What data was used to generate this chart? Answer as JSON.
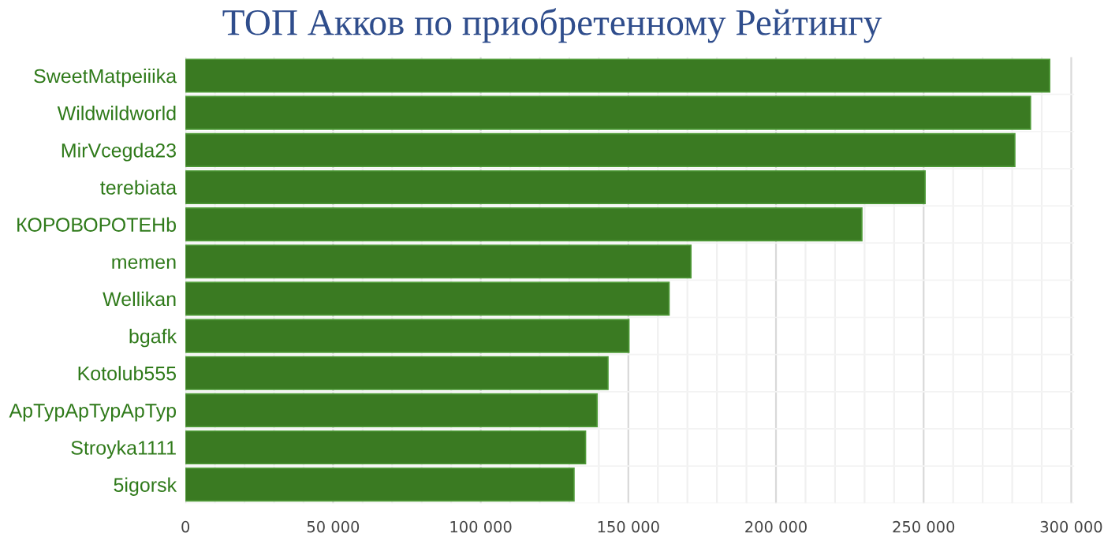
{
  "chart_data": {
    "type": "bar",
    "orientation": "horizontal",
    "title": "ТОП Акков по приобретенному Рейтингу",
    "categories": [
      "SweetMatpeiiika",
      "Wildwildworld",
      "MirVcegda23",
      "terebiata",
      "КОРОВОРОТЕНb",
      "memen",
      "Wellikan",
      "bgafk",
      "Kotolub555",
      "ApTypApTypApTyp",
      "Stroyka1111",
      "5igorsk"
    ],
    "values": [
      292700,
      286200,
      280900,
      250500,
      229100,
      171200,
      163800,
      150200,
      143100,
      139400,
      135500,
      131600
    ],
    "color": "#3a7a22",
    "xlim": [
      0,
      301000
    ],
    "xticks": [
      0,
      {
        "value": 10000,
        "label": null
      },
      {
        "value": 20000,
        "label": null
      },
      {
        "value": 30000,
        "label": null
      },
      {
        "value": 40000,
        "label": null
      },
      {
        "value": 50000,
        "label": "50 000"
      },
      {
        "value": 60000,
        "label": null
      },
      {
        "value": 70000,
        "label": null
      },
      {
        "value": 80000,
        "label": null
      },
      {
        "value": 90000,
        "label": null
      },
      {
        "value": 100000,
        "label": "100 000"
      },
      {
        "value": 110000,
        "label": null
      },
      {
        "value": 120000,
        "label": null
      },
      {
        "value": 130000,
        "label": null
      },
      {
        "value": 140000,
        "label": null
      },
      {
        "value": 150000,
        "label": "150 000"
      },
      {
        "value": 160000,
        "label": null
      },
      {
        "value": 170000,
        "label": null
      },
      {
        "value": 180000,
        "label": null
      },
      {
        "value": 190000,
        "label": null
      },
      {
        "value": 200000,
        "label": "200 000"
      },
      {
        "value": 210000,
        "label": null
      },
      {
        "value": 220000,
        "label": null
      },
      {
        "value": 230000,
        "label": null
      },
      {
        "value": 240000,
        "label": null
      },
      {
        "value": 250000,
        "label": "250 000"
      },
      {
        "value": 260000,
        "label": null
      },
      {
        "value": 270000,
        "label": null
      },
      {
        "value": 280000,
        "label": null
      },
      {
        "value": 290000,
        "label": null
      },
      {
        "value": 300000,
        "label": "300 000"
      }
    ],
    "grid": "x",
    "legend": false
  }
}
